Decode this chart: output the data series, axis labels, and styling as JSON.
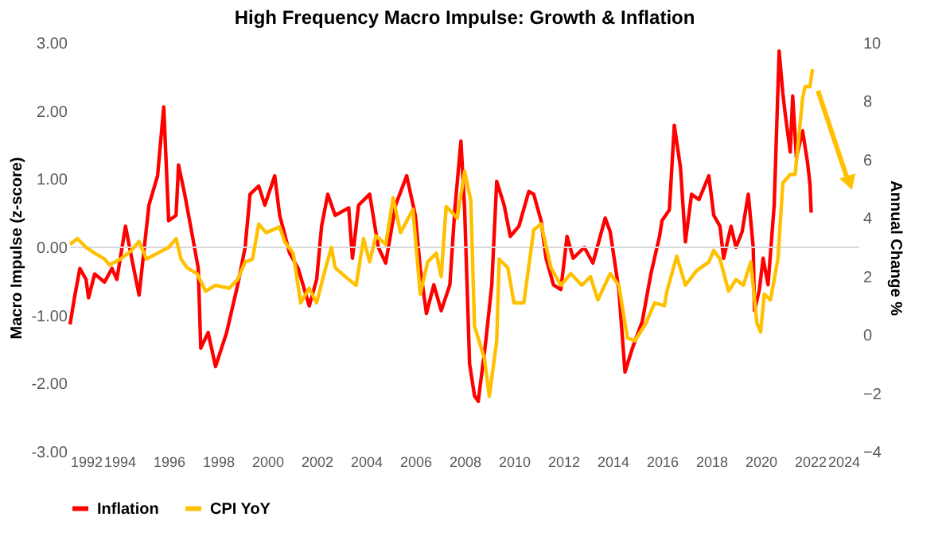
{
  "chart_data": {
    "type": "line",
    "title": "High Frequency Macro Impulse: Growth & Inflation",
    "ylabel": "Macro Impulse (z-score)",
    "y2label": "Annual Change %",
    "xlim": [
      1992,
      2024
    ],
    "xticks": [
      1992,
      1994,
      1996,
      1998,
      2000,
      2002,
      2004,
      2006,
      2008,
      2010,
      2012,
      2014,
      2016,
      2018,
      2020,
      2022,
      2024
    ],
    "ylim": [
      -3,
      3
    ],
    "yticks": [
      {
        "value": 3,
        "label": "3.00"
      },
      {
        "value": 2,
        "label": "2.00"
      },
      {
        "value": 1,
        "label": "1.00"
      },
      {
        "value": 0,
        "label": "0.00"
      },
      {
        "value": -1,
        "label": "-1.00"
      },
      {
        "value": -2,
        "label": "-2.00"
      },
      {
        "value": -3,
        "label": "-3.00"
      }
    ],
    "y2lim": [
      -4,
      10
    ],
    "y2ticks": [
      -4,
      -2,
      0,
      2,
      4,
      6,
      8,
      10
    ],
    "grid": false,
    "legend": "bottom",
    "marker": "none",
    "line_style": "solid",
    "ref_lines": [
      {
        "axis": "y",
        "value": 0,
        "color": "#d9d9d9"
      }
    ],
    "series": [
      {
        "name": "Inflation",
        "color": "#ff0000",
        "x": [
          1992.0,
          1992.2,
          1992.4,
          1992.65,
          1992.75,
          1993.0,
          1993.4,
          1993.7,
          1993.9,
          1994.25,
          1994.5,
          1994.8,
          1995.2,
          1995.55,
          1995.8,
          1996.0,
          1996.3,
          1996.4,
          1996.65,
          1996.95,
          1997.2,
          1997.3,
          1997.6,
          1997.9,
          1998.35,
          1998.8,
          1999.1,
          1999.3,
          1999.65,
          1999.9,
          2000.3,
          2000.5,
          2000.9,
          2001.25,
          2001.7,
          2002.0,
          2002.2,
          2002.45,
          2002.75,
          2003.3,
          2003.45,
          2003.7,
          2004.15,
          2004.5,
          2004.8,
          2005.2,
          2005.65,
          2006.0,
          2006.2,
          2006.45,
          2006.75,
          2007.05,
          2007.4,
          2007.6,
          2007.85,
          2008.0,
          2008.2,
          2008.4,
          2008.55,
          2008.85,
          2009.1,
          2009.3,
          2009.6,
          2009.85,
          2010.2,
          2010.6,
          2010.8,
          2011.1,
          2011.3,
          2011.6,
          2011.9,
          2012.15,
          2012.4,
          2012.85,
          2013.2,
          2013.7,
          2013.9,
          2014.25,
          2014.5,
          2014.8,
          2015.2,
          2015.55,
          2015.9,
          2016.0,
          2016.3,
          2016.5,
          2016.75,
          2016.95,
          2017.2,
          2017.5,
          2017.9,
          2018.1,
          2018.35,
          2018.5,
          2018.8,
          2019.0,
          2019.25,
          2019.5,
          2019.7,
          2019.75,
          2019.95,
          2020.1,
          2020.3,
          2020.55,
          2020.75,
          2020.9,
          2021.0,
          2021.2,
          2021.3,
          2021.45,
          2021.7,
          2021.9,
          2022.0,
          2022.05
        ],
        "values": [
          -1.13,
          -0.7,
          -0.31,
          -0.47,
          -0.74,
          -0.39,
          -0.51,
          -0.31,
          -0.47,
          0.31,
          -0.16,
          -0.7,
          0.62,
          1.05,
          2.06,
          0.39,
          0.47,
          1.21,
          0.78,
          0.19,
          -0.31,
          -1.48,
          -1.25,
          -1.75,
          -1.25,
          -0.55,
          0.0,
          0.78,
          0.9,
          0.62,
          1.05,
          0.47,
          -0.08,
          -0.31,
          -0.86,
          -0.47,
          0.31,
          0.78,
          0.47,
          0.58,
          -0.16,
          0.62,
          0.78,
          0.0,
          -0.23,
          0.62,
          1.05,
          0.47,
          -0.31,
          -0.97,
          -0.55,
          -0.93,
          -0.55,
          0.55,
          1.56,
          0.55,
          -1.71,
          -2.18,
          -2.26,
          -1.4,
          -0.55,
          0.97,
          0.62,
          0.16,
          0.31,
          0.82,
          0.78,
          0.39,
          -0.16,
          -0.55,
          -0.62,
          0.16,
          -0.16,
          0.0,
          -0.23,
          0.43,
          0.23,
          -0.62,
          -1.83,
          -1.48,
          -1.09,
          -0.39,
          0.16,
          0.39,
          0.55,
          1.79,
          1.17,
          0.08,
          0.78,
          0.7,
          1.05,
          0.47,
          0.31,
          -0.16,
          0.31,
          0.0,
          0.23,
          0.78,
          0.0,
          -0.93,
          -0.62,
          -0.16,
          -0.55,
          0.62,
          2.88,
          2.26,
          1.95,
          1.4,
          2.22,
          1.32,
          1.71,
          1.25,
          0.93,
          0.51
        ]
      },
      {
        "name": "CPI YoY",
        "color": "#ffc000",
        "axis": "y2",
        "x": [
          1992.0,
          1992.3,
          1992.65,
          1993.0,
          1993.4,
          1993.6,
          1994.05,
          1994.5,
          1994.8,
          1995.1,
          1995.55,
          1996.0,
          1996.3,
          1996.5,
          1996.75,
          1997.15,
          1997.5,
          1997.9,
          1998.45,
          1998.8,
          1999.1,
          1999.4,
          1999.65,
          1999.95,
          2000.5,
          2000.7,
          2001.05,
          2001.35,
          2001.7,
          2002.0,
          2002.3,
          2002.6,
          2002.75,
          2003.3,
          2003.6,
          2003.9,
          2004.15,
          2004.4,
          2004.8,
          2005.1,
          2005.4,
          2005.9,
          2006.2,
          2006.5,
          2006.85,
          2007.05,
          2007.25,
          2007.7,
          2008.0,
          2008.25,
          2008.4,
          2008.8,
          2009.0,
          2009.3,
          2009.4,
          2009.75,
          2010.0,
          2010.4,
          2010.8,
          2011.1,
          2011.5,
          2011.9,
          2012.3,
          2012.75,
          2013.1,
          2013.4,
          2013.9,
          2014.25,
          2014.6,
          2014.9,
          2015.35,
          2015.7,
          2016.1,
          2016.2,
          2016.6,
          2016.95,
          2017.4,
          2017.9,
          2018.1,
          2018.35,
          2018.7,
          2019.0,
          2019.3,
          2019.6,
          2019.85,
          2020.0,
          2020.15,
          2020.4,
          2020.7,
          2020.9,
          2021.2,
          2021.4,
          2021.7,
          2021.8,
          2022.0,
          2022.1
        ],
        "values": [
          3.1,
          3.3,
          3.0,
          2.8,
          2.6,
          2.4,
          2.6,
          2.9,
          3.2,
          2.6,
          2.8,
          3.0,
          3.3,
          2.6,
          2.3,
          2.1,
          1.5,
          1.7,
          1.6,
          1.9,
          2.5,
          2.6,
          3.8,
          3.5,
          3.7,
          3.2,
          2.8,
          1.1,
          1.6,
          1.1,
          2.1,
          3.0,
          2.3,
          1.9,
          1.7,
          3.3,
          2.5,
          3.4,
          3.1,
          4.7,
          3.5,
          4.3,
          1.4,
          2.5,
          2.8,
          2.0,
          4.4,
          4.0,
          5.6,
          4.6,
          0.3,
          -0.8,
          -2.1,
          -0.2,
          2.6,
          2.3,
          1.1,
          1.1,
          3.6,
          3.8,
          2.3,
          1.7,
          2.1,
          1.7,
          2.0,
          1.2,
          2.1,
          1.7,
          -0.1,
          -0.2,
          0.4,
          1.1,
          1.0,
          1.5,
          2.7,
          1.7,
          2.2,
          2.5,
          2.9,
          2.6,
          1.5,
          1.9,
          1.7,
          2.5,
          0.4,
          0.1,
          1.4,
          1.2,
          2.6,
          5.2,
          5.5,
          5.5,
          8.1,
          8.5,
          8.5,
          9.1
        ]
      }
    ]
  }
}
